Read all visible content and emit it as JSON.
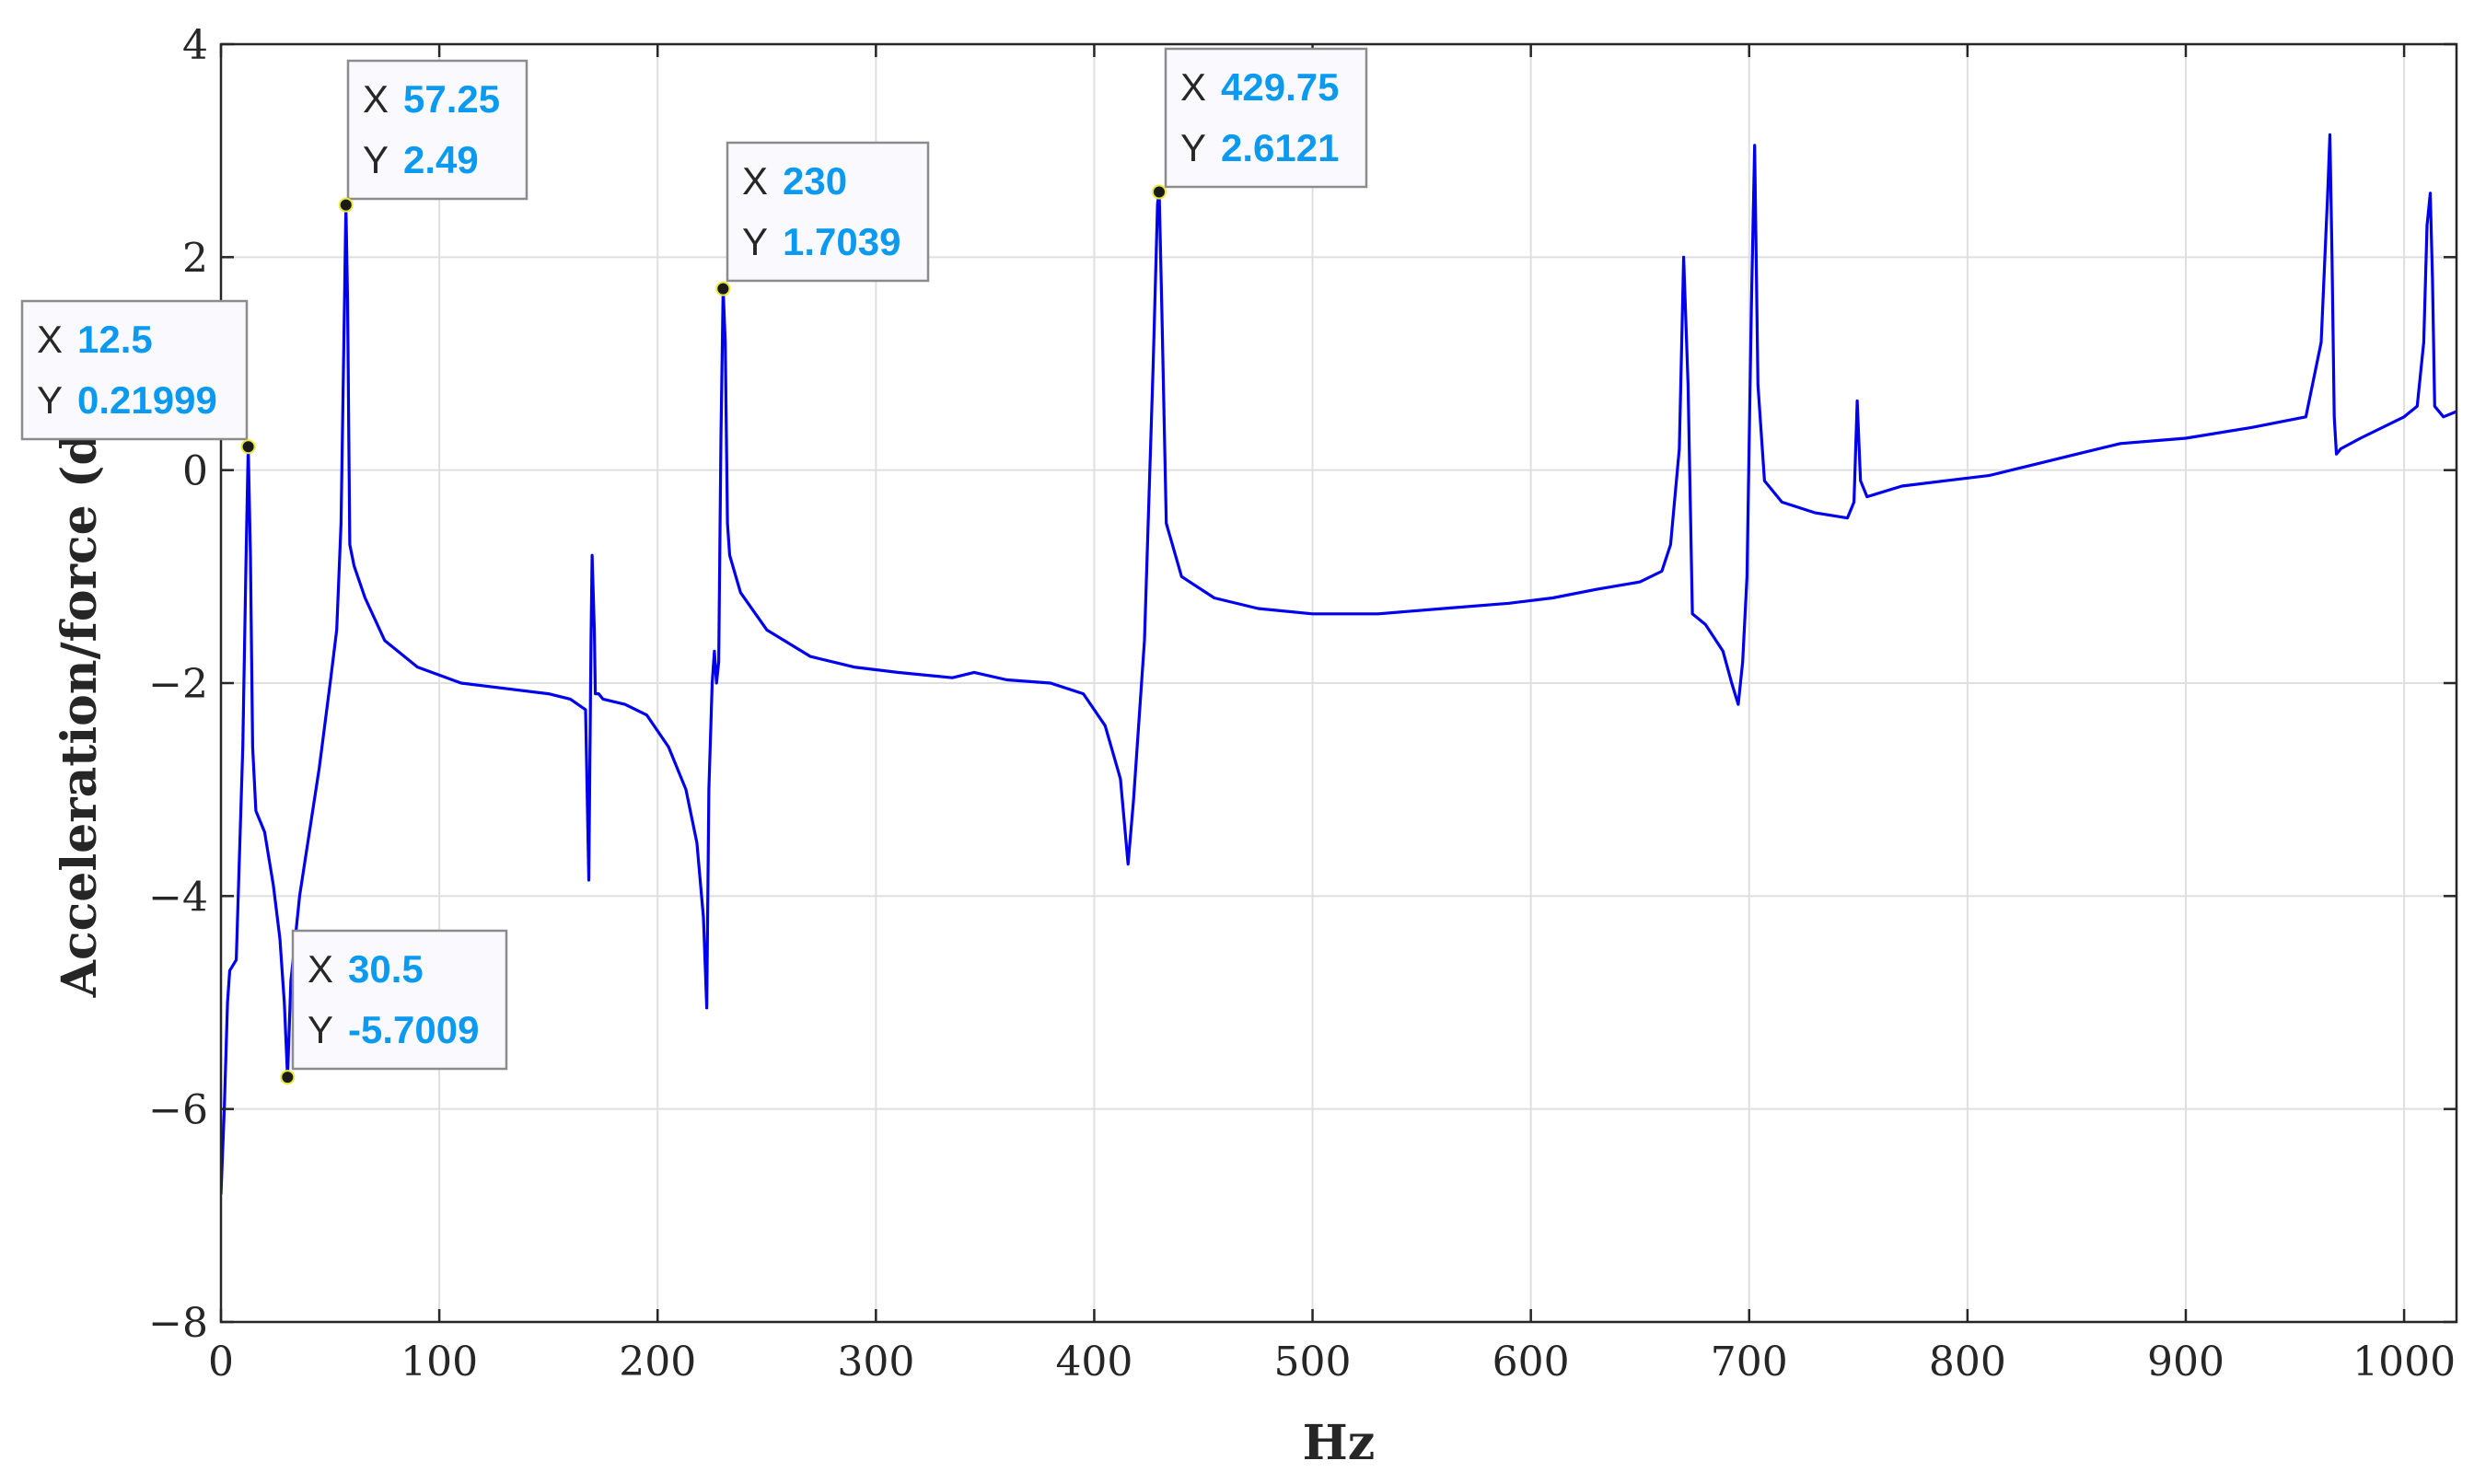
{
  "chart_data": {
    "type": "line",
    "title": "",
    "xlabel": "Hz",
    "ylabel": "Acceleration/force (dB)",
    "xlim": [
      0,
      1024
    ],
    "ylim": [
      -8,
      4
    ],
    "x_ticks": [
      0,
      100,
      200,
      300,
      400,
      500,
      600,
      700,
      800,
      900,
      1000
    ],
    "y_ticks": [
      -8,
      -6,
      -4,
      -2,
      0,
      2,
      4
    ],
    "x_tick_labels": [
      "0",
      "100",
      "200",
      "300",
      "400",
      "500",
      "600",
      "700",
      "800",
      "900",
      "1000"
    ],
    "y_tick_labels": [
      "−8",
      "−6",
      "−4",
      "−2",
      "0",
      "2",
      "4"
    ],
    "grid": true,
    "series_color": "#0000ee",
    "series": [
      {
        "x": [
          0,
          1.5,
          3,
          4,
          7,
          10,
          11.5,
          12.5,
          13.5,
          14.5,
          16,
          18,
          20,
          24,
          27,
          29,
          30.5,
          32,
          36,
          45,
          50,
          53,
          55,
          56.5,
          57.25,
          58,
          59,
          61,
          66,
          75,
          90,
          110,
          130,
          150,
          160,
          167,
          168.5,
          169.5,
          170,
          171,
          171.5,
          173,
          175,
          185,
          195,
          205,
          213,
          218,
          221,
          222.5,
          223.5,
          225,
          226,
          227,
          228,
          229,
          230,
          231,
          232,
          233,
          238,
          250,
          270,
          290,
          310,
          335,
          345,
          360,
          380,
          395,
          405,
          412,
          415.5,
          418,
          423,
          427,
          429,
          429.75,
          431,
          433,
          440,
          455,
          475,
          500,
          530,
          560,
          590,
          610,
          630,
          650,
          660,
          664,
          668,
          670,
          672,
          674,
          680,
          688,
          692,
          695,
          697,
          699,
          701,
          702.5,
          704,
          707,
          715,
          730,
          745,
          748,
          749.5,
          751,
          754,
          770,
          790,
          810,
          830,
          850,
          870,
          900,
          930,
          955,
          962,
          965,
          966,
          967,
          968,
          969,
          971,
          980,
          1000,
          1006,
          1009,
          1010.5,
          1012,
          1013,
          1014,
          1018,
          1024
        ],
        "y": [
          -6.8,
          -6.0,
          -5.0,
          -4.7,
          -4.6,
          -2.6,
          -0.8,
          0.21999,
          -0.8,
          -2.6,
          -3.2,
          -3.3,
          -3.4,
          -3.9,
          -4.4,
          -5.0,
          -5.7009,
          -4.8,
          -4.0,
          -2.8,
          -2.0,
          -1.5,
          -0.5,
          1.5,
          2.49,
          1.6,
          -0.7,
          -0.9,
          -1.2,
          -1.6,
          -1.85,
          -2.0,
          -2.05,
          -2.1,
          -2.15,
          -2.25,
          -3.85,
          -1.6,
          -0.8,
          -1.5,
          -2.1,
          -2.1,
          -2.15,
          -2.2,
          -2.3,
          -2.6,
          -3.0,
          -3.5,
          -4.2,
          -5.05,
          -3.0,
          -2.0,
          -1.7,
          -2.0,
          -1.8,
          0.3,
          1.7039,
          1.2,
          -0.5,
          -0.8,
          -1.15,
          -1.5,
          -1.75,
          -1.85,
          -1.9,
          -1.95,
          -1.9,
          -1.97,
          -2.0,
          -2.1,
          -2.4,
          -2.9,
          -3.7,
          -3.1,
          -1.6,
          1.0,
          2.5,
          2.6121,
          1.5,
          -0.5,
          -1.0,
          -1.2,
          -1.3,
          -1.35,
          -1.35,
          -1.3,
          -1.25,
          -1.2,
          -1.12,
          -1.05,
          -0.95,
          -0.7,
          0.2,
          2.0,
          0.8,
          -1.35,
          -1.45,
          -1.7,
          -2.0,
          -2.2,
          -1.8,
          -1.0,
          1.5,
          3.05,
          0.8,
          -0.1,
          -0.3,
          -0.4,
          -0.45,
          -0.3,
          0.65,
          -0.1,
          -0.25,
          -0.15,
          -0.1,
          -0.05,
          0.05,
          0.15,
          0.25,
          0.3,
          0.4,
          0.5,
          1.2,
          2.6,
          3.15,
          2.0,
          0.5,
          0.15,
          0.2,
          0.3,
          0.5,
          0.6,
          1.2,
          2.3,
          2.6,
          1.8,
          0.6,
          0.5,
          0.55
        ]
      }
    ],
    "datatips": [
      {
        "x": "12.5",
        "y": "0.21999",
        "xv": 12.5,
        "yv": 0.21999
      },
      {
        "x": "57.25",
        "y": "2.49",
        "xv": 57.25,
        "yv": 2.49
      },
      {
        "x": "30.5",
        "y": "-5.7009",
        "xv": 30.5,
        "yv": -5.7009
      },
      {
        "x": "230",
        "y": "1.7039",
        "xv": 230,
        "yv": 1.7039
      },
      {
        "x": "429.75",
        "y": "2.6121",
        "xv": 429.75,
        "yv": 2.6121
      }
    ],
    "datatip_x_key": "X",
    "datatip_y_key": "Y"
  }
}
